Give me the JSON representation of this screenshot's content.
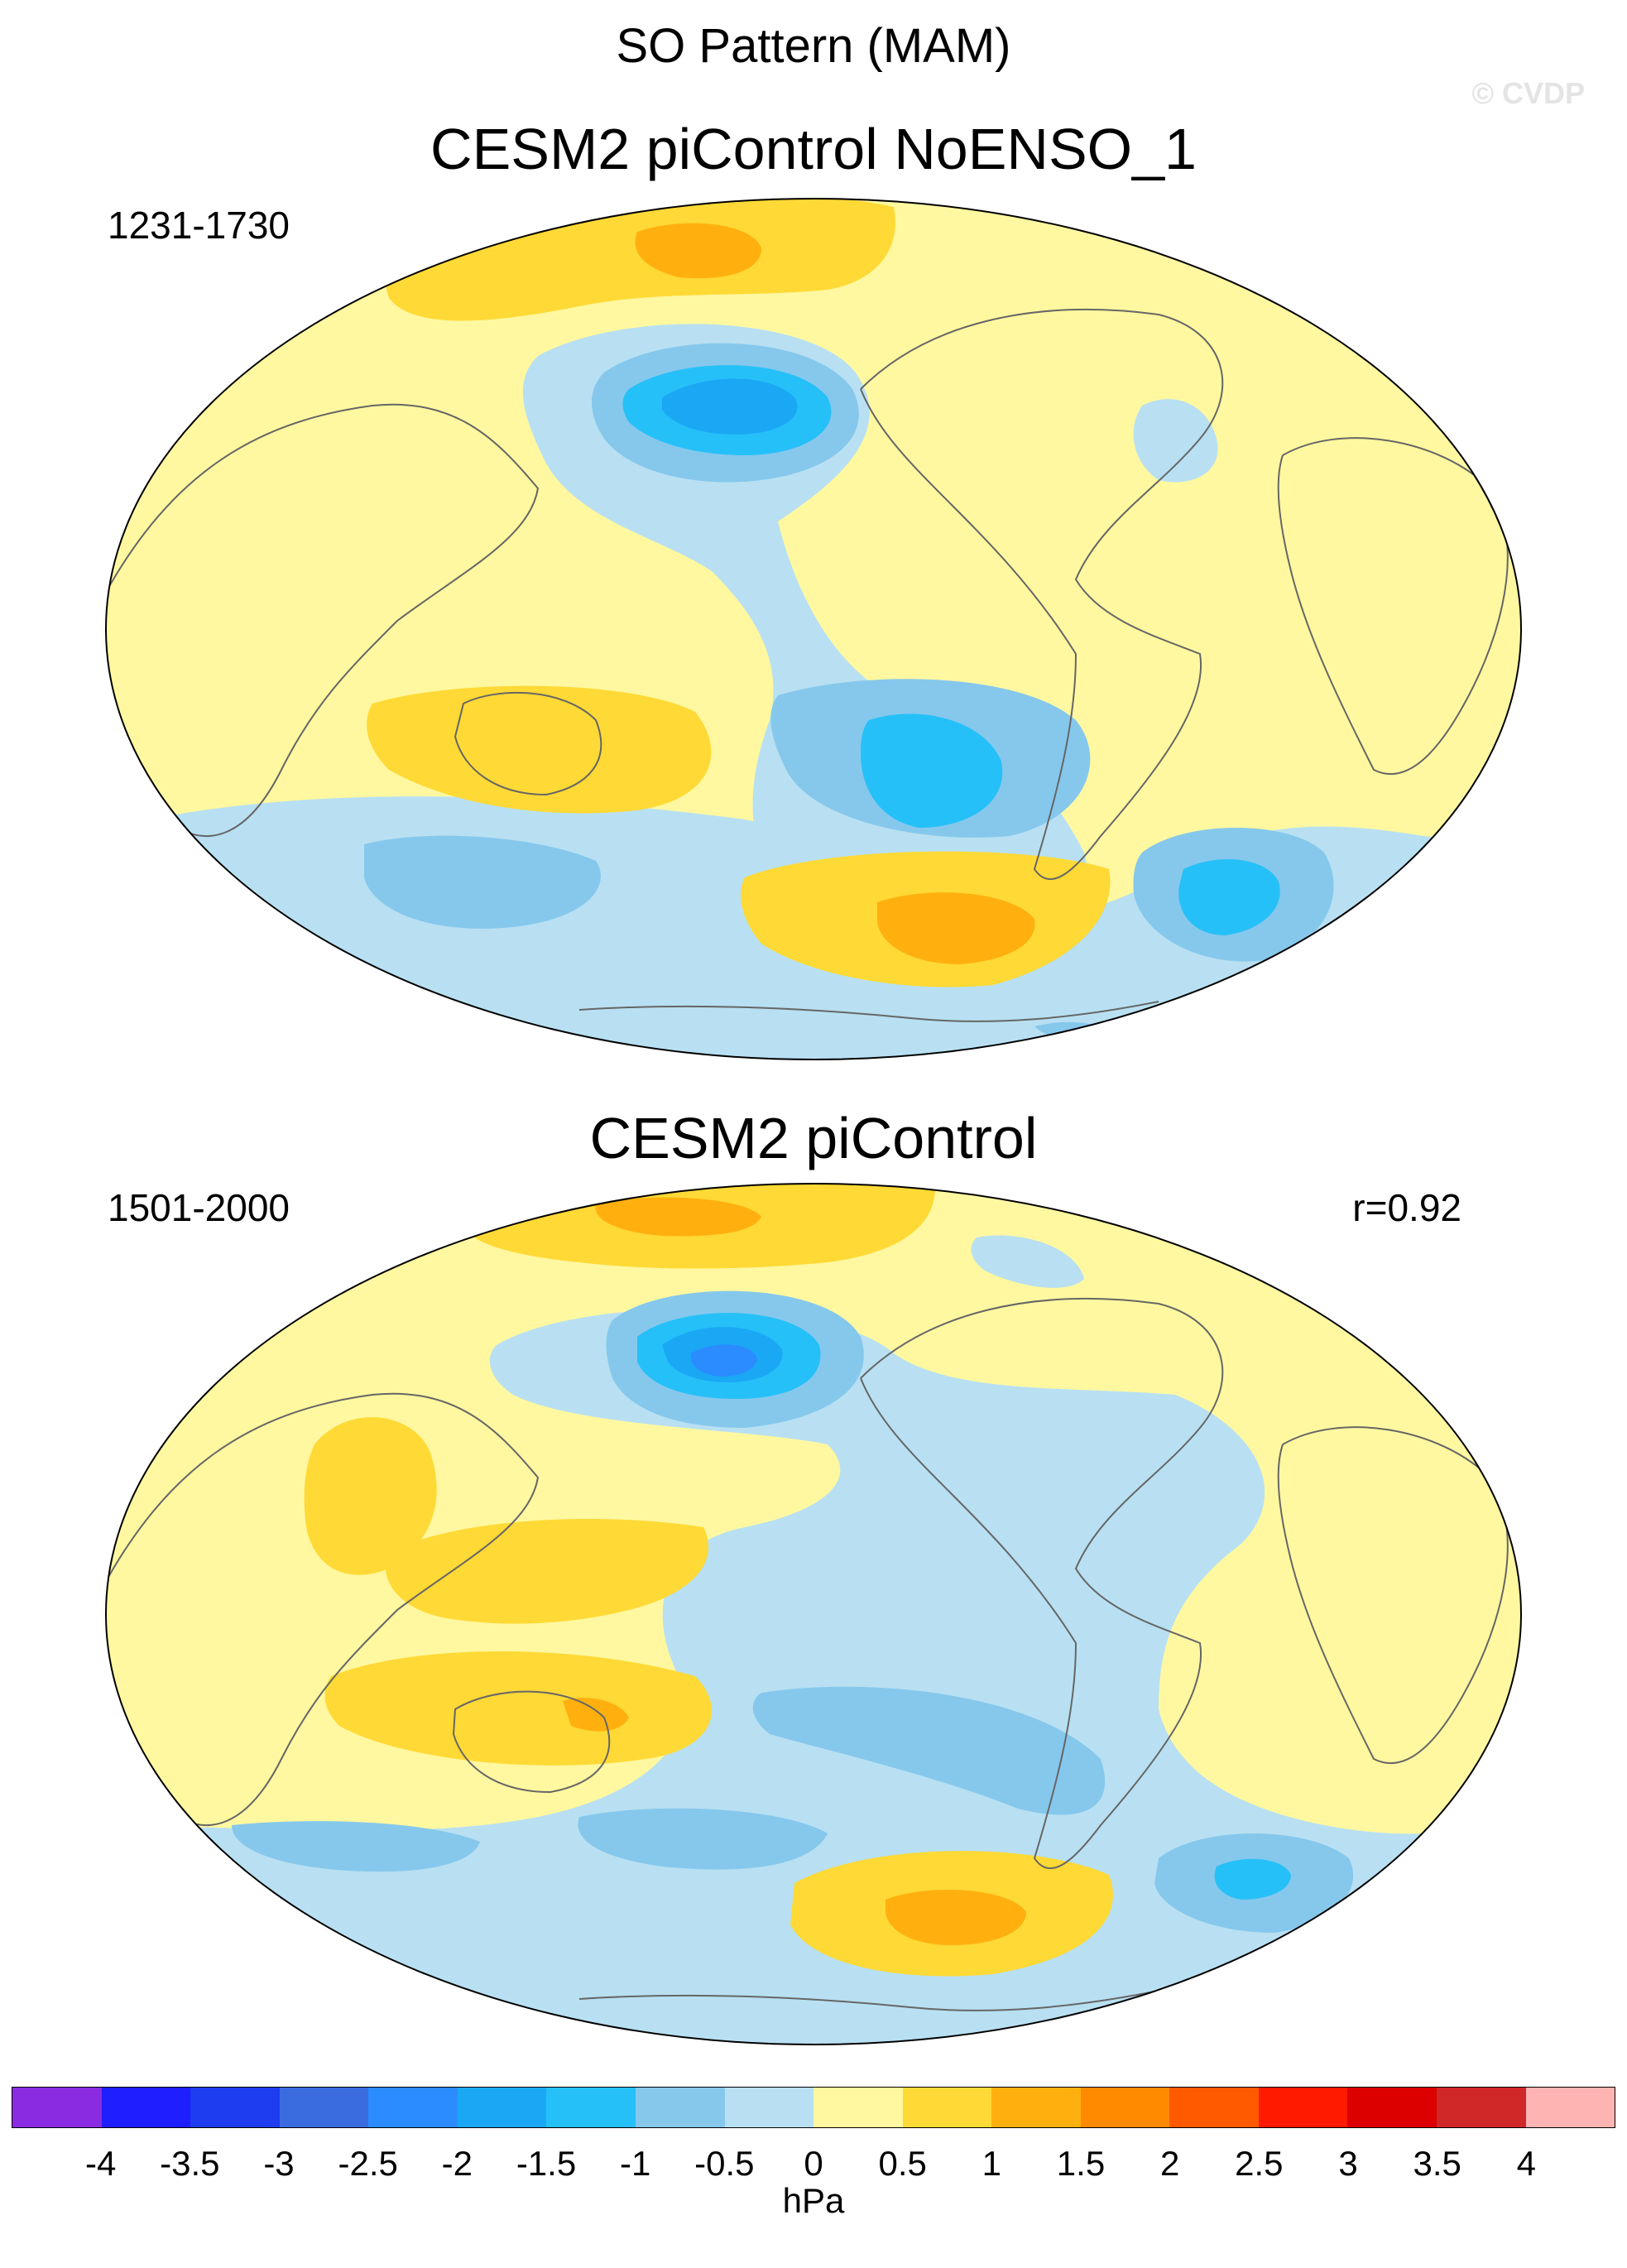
{
  "header": {
    "title": "SO Pattern (MAM)",
    "watermark": "© CVDP"
  },
  "panels": [
    {
      "title": "CESM2 piControl NoENSO_1",
      "period": "1231-1730",
      "correlation": ""
    },
    {
      "title": "CESM2 piControl",
      "period": "1501-2000",
      "correlation": "r=0.92"
    }
  ],
  "colorbar": {
    "units": "hPa",
    "tick_labels": [
      "-4",
      "-3.5",
      "-3",
      "-2.5",
      "-2",
      "-1.5",
      "-1",
      "-0.5",
      "0",
      "0.5",
      "1",
      "1.5",
      "2",
      "2.5",
      "3",
      "3.5",
      "4"
    ],
    "colors": [
      "#8a2be2",
      "#1e1eff",
      "#1e3cf0",
      "#3a6ce0",
      "#2a8cff",
      "#1aa8f5",
      "#26c0f8",
      "#86c8ec",
      "#b8e0f2",
      "#fff8a0",
      "#ffd935",
      "#ffb00f",
      "#ff8a00",
      "#ff5a00",
      "#ff1a00",
      "#dc0000",
      "#d02828",
      "#ffb4b4"
    ]
  },
  "legend_colors": {
    "land_outline": "#666666",
    "map_border": "#000000"
  }
}
